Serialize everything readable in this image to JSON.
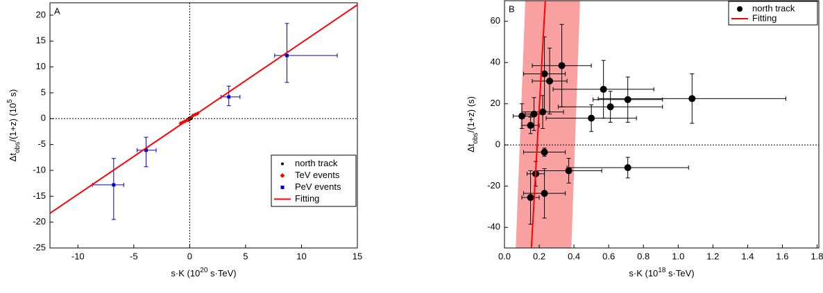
{
  "chart_data": [
    {
      "type": "scatter",
      "panel_label": "A",
      "xlabel": [
        {
          "text": "s·K (10"
        },
        {
          "text": "20",
          "shift": "super"
        },
        {
          "text": " s·TeV)"
        }
      ],
      "ylabel": [
        {
          "text": "Δt"
        },
        {
          "text": "obs",
          "shift": "sub"
        },
        {
          "text": "/(1+z) (10"
        },
        {
          "text": "5",
          "shift": "super"
        },
        {
          "text": " s)"
        }
      ],
      "xlim": [
        -12.5,
        15
      ],
      "ylim": [
        -25,
        22.4
      ],
      "xticks": [
        -10,
        -5,
        0,
        5,
        10,
        15
      ],
      "yticks": [
        -25,
        -20,
        -15,
        -10,
        -5,
        0,
        5,
        10,
        15,
        20
      ],
      "hlines": [
        0
      ],
      "vlines": [
        0
      ],
      "legend": "lower right",
      "series": [
        {
          "name": "north track",
          "type": "scatter",
          "marker": "circle",
          "color": "#000000",
          "x": [
            -0.1,
            0,
            0.1
          ],
          "y": [
            -0.2,
            0,
            0.1
          ]
        },
        {
          "name": "TeV events",
          "type": "scatter",
          "marker": "diamond",
          "color": "#ff0000",
          "x": [
            -0.8,
            -0.6,
            -0.4,
            -0.2,
            0.3,
            0.5,
            0.7
          ],
          "y": [
            -0.9,
            -0.7,
            -0.5,
            -0.3,
            0.6,
            0.8,
            1.0
          ]
        },
        {
          "name": "PeV events",
          "type": "scatter",
          "marker": "square",
          "color": "#0000cc",
          "x": [
            -6.8,
            -3.9,
            3.5,
            8.7
          ],
          "y": [
            -12.8,
            -6.1,
            4.2,
            12.2
          ],
          "xerr": [
            [
              1.9,
              0.9
            ],
            [
              0.8,
              0.9
            ],
            [
              0.7,
              1.0
            ],
            [
              1.1,
              4.5
            ]
          ],
          "yerr": [
            [
              6.7,
              5.1
            ],
            [
              3.2,
              2.5
            ],
            [
              1.7,
              2.1
            ],
            [
              5.2,
              6.2
            ]
          ]
        },
        {
          "name": "Fitting",
          "type": "line",
          "color": "#ff0000",
          "x": [
            -12.5,
            15
          ],
          "y": [
            -18.3,
            22
          ]
        }
      ]
    },
    {
      "type": "scatter",
      "panel_label": "B",
      "xlabel": [
        {
          "text": "s·K (10"
        },
        {
          "text": "18",
          "shift": "super"
        },
        {
          "text": " s·TeV)"
        }
      ],
      "ylabel": [
        {
          "text": "Δt"
        },
        {
          "text": "obs",
          "shift": "sub"
        },
        {
          "text": "/(1+z) (s)"
        }
      ],
      "xlim": [
        0,
        1.81
      ],
      "ylim": [
        -50,
        70
      ],
      "xticks": [
        {
          "value": 0,
          "label": "0.0"
        },
        0.2,
        0.4,
        0.6,
        0.8,
        {
          "value": 1,
          "label": "1.0"
        },
        1.2,
        1.4,
        1.6,
        1.8
      ],
      "yticks": [
        -40,
        -20,
        0,
        20,
        40,
        60
      ],
      "hlines": [
        0
      ],
      "vlines": [],
      "legend": "upper right",
      "band": {
        "color": "#f9a0a0",
        "y": [
          -50,
          70
        ],
        "x_low": [
          0.065,
          0.12
        ],
        "x_high": [
          0.385,
          0.435
        ]
      },
      "series": [
        {
          "name": "north track",
          "type": "scatter",
          "marker": "circle",
          "color": "#000000",
          "x": [
            0.1,
            0.15,
            0.17,
            0.22,
            0.23,
            0.26,
            0.33,
            0.57,
            0.61,
            0.71,
            0.5,
            1.08,
            0.23,
            0.18,
            0.37,
            0.71,
            0.15,
            0.23
          ],
          "y": [
            14,
            9.5,
            15,
            16,
            34.5,
            31,
            38.5,
            27,
            18.5,
            22,
            13,
            22.5,
            -3.5,
            -14,
            -12.5,
            -11,
            -25.5,
            -23.5
          ],
          "xerr": [
            [
              0.05,
              0.05
            ],
            [
              0.05,
              0.05
            ],
            [
              0.05,
              0.05
            ],
            [
              0.12,
              0.12
            ],
            [
              0.12,
              0.12
            ],
            [
              0.1,
              0.1
            ],
            [
              0.17,
              0.17
            ],
            [
              0.29,
              0.29
            ],
            [
              0.3,
              0.3
            ],
            [
              0.2,
              0.2
            ],
            [
              0.26,
              0.26
            ],
            [
              0.54,
              0.54
            ],
            [
              0.12,
              0.12
            ],
            [
              0.05,
              0.05
            ],
            [
              0.19,
              0.19
            ],
            [
              0.35,
              0.35
            ],
            [
              0.05,
              0.05
            ],
            [
              0.12,
              0.12
            ]
          ],
          "yerr": [
            [
              6,
              6
            ],
            [
              4,
              4
            ],
            [
              8,
              8
            ],
            [
              8,
              8
            ],
            [
              18,
              18
            ],
            [
              16,
              16
            ],
            [
              20,
              20
            ],
            [
              14,
              14
            ],
            [
              7.5,
              7.5
            ],
            [
              11,
              11
            ],
            [
              6.5,
              6.5
            ],
            [
              12,
              12
            ],
            [
              2,
              2
            ],
            [
              6,
              6
            ],
            [
              6,
              6
            ],
            [
              5,
              5
            ],
            [
              13,
              13
            ],
            [
              12,
              12
            ]
          ]
        },
        {
          "name": "Fitting",
          "type": "line",
          "color": "#ff0000",
          "x": [
            0.155,
            0.235
          ],
          "y": [
            -50,
            70
          ]
        }
      ]
    }
  ]
}
